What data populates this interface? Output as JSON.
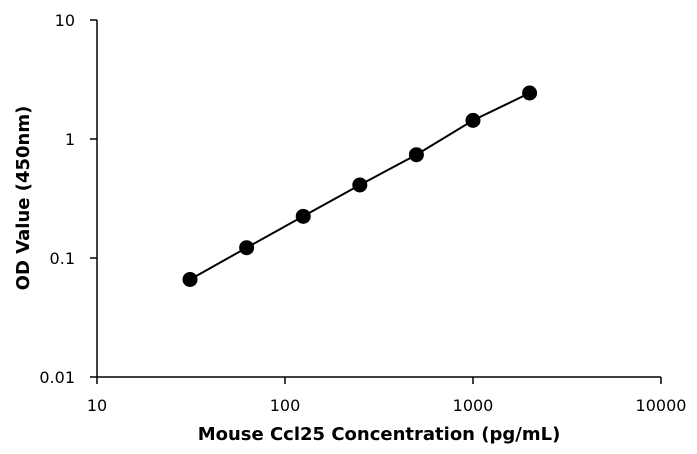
{
  "chart_data": {
    "type": "scatter",
    "title": "",
    "xlabel": "Mouse Ccl25 Concentration (pg/mL)",
    "ylabel": "OD Value (450nm)",
    "x_scale": "log",
    "y_scale": "log",
    "xlim": [
      10,
      10000
    ],
    "ylim": [
      0.01,
      10
    ],
    "x_ticks": [
      10,
      100,
      1000,
      10000
    ],
    "x_tick_labels": [
      "10",
      "100",
      "1000",
      "10000"
    ],
    "y_ticks": [
      0.01,
      0.1,
      1,
      10
    ],
    "y_tick_labels": [
      "0.01",
      "0.1",
      "1",
      "10"
    ],
    "grid": false,
    "legend": "none",
    "series": [
      {
        "x": [
          31.25,
          62.5,
          125,
          250,
          500,
          1000,
          2000
        ],
        "y": [
          0.066,
          0.122,
          0.224,
          0.411,
          0.738,
          1.434,
          2.435
        ],
        "marker": "circle",
        "line": true,
        "color": "#000000"
      }
    ]
  }
}
